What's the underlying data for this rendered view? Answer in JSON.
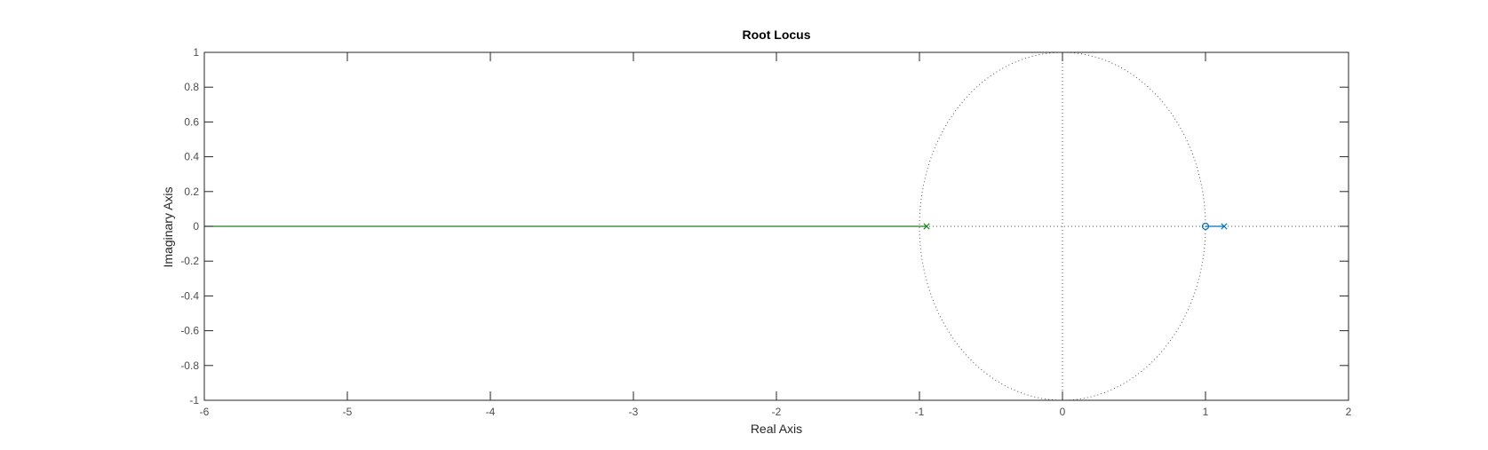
{
  "chart_data": {
    "type": "line",
    "title": "Root Locus",
    "xlabel": "Real Axis",
    "ylabel": "Imaginary Axis",
    "xlim": [
      -6,
      2
    ],
    "ylim": [
      -1,
      1
    ],
    "xticks": [
      -6,
      -5,
      -4,
      -3,
      -2,
      -1,
      0,
      1,
      2
    ],
    "xtick_labels": [
      "-6",
      "-5",
      "-4",
      "-3",
      "-2",
      "-1",
      "0",
      "1",
      "2"
    ],
    "yticks": [
      -1,
      -0.8,
      -0.6,
      -0.4,
      -0.2,
      0,
      0.2,
      0.4,
      0.6,
      0.8,
      1
    ],
    "ytick_labels": [
      "-1",
      "-0.8",
      "-0.6",
      "-0.4",
      "-0.2",
      "0",
      "0.2",
      "0.4",
      "0.6",
      "0.8",
      "1"
    ],
    "grid": false,
    "unit_circle": {
      "shown": true,
      "radius": 1,
      "center": [
        0,
        0
      ]
    },
    "series": [
      {
        "color": "#0072BD",
        "x": [
          1.13,
          1.0
        ],
        "y": [
          0,
          0
        ],
        "pole": [
          1.13,
          0
        ],
        "zero": [
          1.0,
          0
        ]
      },
      {
        "color": "#1E7F1E",
        "x": [
          -0.95,
          -6
        ],
        "y": [
          0,
          0
        ],
        "pole": [
          -0.95,
          0
        ]
      }
    ]
  }
}
